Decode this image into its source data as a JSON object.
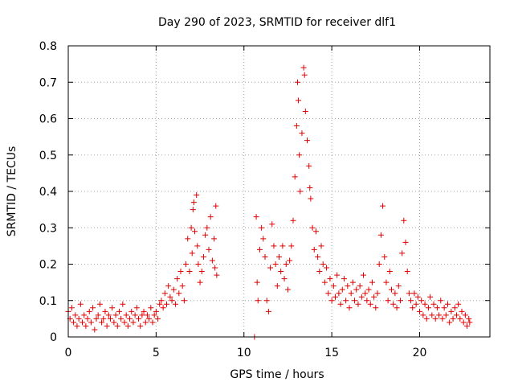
{
  "chart_data": {
    "type": "scatter",
    "title": "Day 290 of 2023, SRMTID for receiver dlf1",
    "xlabel": "GPS time / hours",
    "ylabel": "SRMTID / TECUs",
    "xlim": [
      0,
      24
    ],
    "ylim": [
      0,
      0.8
    ],
    "xticks": [
      0,
      5,
      10,
      15,
      20
    ],
    "yticks": [
      0,
      0.1,
      0.2,
      0.3,
      0.4,
      0.5,
      0.6,
      0.7,
      0.8
    ],
    "xtick_labels": [
      "0",
      "5",
      "10",
      "15",
      "20"
    ],
    "ytick_labels": [
      "0",
      "0.1",
      "0.2",
      "0.3",
      "0.4",
      "0.5",
      "0.6",
      "0.7",
      "0.8"
    ],
    "grid": true,
    "marker": "+",
    "color": "#e00000",
    "series": [
      {
        "name": "SRMTID",
        "points": [
          [
            0.0,
            0.07
          ],
          [
            0.1,
            0.05
          ],
          [
            0.2,
            0.08
          ],
          [
            0.3,
            0.04
          ],
          [
            0.4,
            0.06
          ],
          [
            0.5,
            0.03
          ],
          [
            0.6,
            0.05
          ],
          [
            0.7,
            0.09
          ],
          [
            0.8,
            0.04
          ],
          [
            0.9,
            0.06
          ],
          [
            1.0,
            0.03
          ],
          [
            1.1,
            0.05
          ],
          [
            1.2,
            0.07
          ],
          [
            1.3,
            0.04
          ],
          [
            1.4,
            0.08
          ],
          [
            1.5,
            0.02
          ],
          [
            1.6,
            0.05
          ],
          [
            1.7,
            0.06
          ],
          [
            1.8,
            0.09
          ],
          [
            1.9,
            0.04
          ],
          [
            2.0,
            0.05
          ],
          [
            2.1,
            0.07
          ],
          [
            2.2,
            0.03
          ],
          [
            2.3,
            0.06
          ],
          [
            2.4,
            0.05
          ],
          [
            2.5,
            0.08
          ],
          [
            2.6,
            0.04
          ],
          [
            2.7,
            0.06
          ],
          [
            2.8,
            0.03
          ],
          [
            2.9,
            0.07
          ],
          [
            3.0,
            0.05
          ],
          [
            3.1,
            0.09
          ],
          [
            3.2,
            0.04
          ],
          [
            3.3,
            0.06
          ],
          [
            3.4,
            0.03
          ],
          [
            3.5,
            0.05
          ],
          [
            3.6,
            0.07
          ],
          [
            3.7,
            0.04
          ],
          [
            3.8,
            0.06
          ],
          [
            3.9,
            0.08
          ],
          [
            4.0,
            0.05
          ],
          [
            4.1,
            0.03
          ],
          [
            4.2,
            0.06
          ],
          [
            4.3,
            0.07
          ],
          [
            4.4,
            0.04
          ],
          [
            4.5,
            0.06
          ],
          [
            4.6,
            0.05
          ],
          [
            4.7,
            0.08
          ],
          [
            4.8,
            0.04
          ],
          [
            4.9,
            0.06
          ],
          [
            5.0,
            0.07
          ],
          [
            5.1,
            0.05
          ],
          [
            5.2,
            0.09
          ],
          [
            5.3,
            0.1
          ],
          [
            5.4,
            0.08
          ],
          [
            5.5,
            0.12
          ],
          [
            5.6,
            0.09
          ],
          [
            5.7,
            0.14
          ],
          [
            5.8,
            0.11
          ],
          [
            5.9,
            0.1
          ],
          [
            6.0,
            0.13
          ],
          [
            6.1,
            0.09
          ],
          [
            6.2,
            0.16
          ],
          [
            6.3,
            0.12
          ],
          [
            6.4,
            0.18
          ],
          [
            6.5,
            0.14
          ],
          [
            6.6,
            0.1
          ],
          [
            6.7,
            0.2
          ],
          [
            6.8,
            0.27
          ],
          [
            6.9,
            0.18
          ],
          [
            7.0,
            0.3
          ],
          [
            7.05,
            0.23
          ],
          [
            7.1,
            0.35
          ],
          [
            7.15,
            0.37
          ],
          [
            7.2,
            0.29
          ],
          [
            7.3,
            0.39
          ],
          [
            7.35,
            0.25
          ],
          [
            7.4,
            0.2
          ],
          [
            7.5,
            0.15
          ],
          [
            7.6,
            0.18
          ],
          [
            7.7,
            0.22
          ],
          [
            7.8,
            0.28
          ],
          [
            7.9,
            0.3
          ],
          [
            8.0,
            0.24
          ],
          [
            8.1,
            0.33
          ],
          [
            8.2,
            0.21
          ],
          [
            8.3,
            0.27
          ],
          [
            8.35,
            0.19
          ],
          [
            8.4,
            0.36
          ],
          [
            8.45,
            0.17
          ],
          [
            10.6,
            0.0
          ],
          [
            10.7,
            0.33
          ],
          [
            10.75,
            0.15
          ],
          [
            10.8,
            0.1
          ],
          [
            10.9,
            0.24
          ],
          [
            11.0,
            0.3
          ],
          [
            11.1,
            0.27
          ],
          [
            11.2,
            0.22
          ],
          [
            11.3,
            0.1
          ],
          [
            11.4,
            0.07
          ],
          [
            11.5,
            0.19
          ],
          [
            11.6,
            0.31
          ],
          [
            11.7,
            0.25
          ],
          [
            11.8,
            0.2
          ],
          [
            11.9,
            0.14
          ],
          [
            12.0,
            0.22
          ],
          [
            12.1,
            0.18
          ],
          [
            12.2,
            0.25
          ],
          [
            12.3,
            0.16
          ],
          [
            12.4,
            0.2
          ],
          [
            12.5,
            0.13
          ],
          [
            12.6,
            0.21
          ],
          [
            12.7,
            0.25
          ],
          [
            12.8,
            0.32
          ],
          [
            12.9,
            0.44
          ],
          [
            13.0,
            0.58
          ],
          [
            13.05,
            0.7
          ],
          [
            13.1,
            0.65
          ],
          [
            13.15,
            0.5
          ],
          [
            13.2,
            0.4
          ],
          [
            13.3,
            0.56
          ],
          [
            13.4,
            0.74
          ],
          [
            13.45,
            0.72
          ],
          [
            13.5,
            0.62
          ],
          [
            13.6,
            0.54
          ],
          [
            13.7,
            0.47
          ],
          [
            13.75,
            0.41
          ],
          [
            13.8,
            0.38
          ],
          [
            13.9,
            0.3
          ],
          [
            14.0,
            0.24
          ],
          [
            14.1,
            0.29
          ],
          [
            14.2,
            0.22
          ],
          [
            14.3,
            0.18
          ],
          [
            14.4,
            0.25
          ],
          [
            14.5,
            0.2
          ],
          [
            14.6,
            0.15
          ],
          [
            14.7,
            0.19
          ],
          [
            14.8,
            0.12
          ],
          [
            14.9,
            0.16
          ],
          [
            15.0,
            0.1
          ],
          [
            15.1,
            0.14
          ],
          [
            15.2,
            0.11
          ],
          [
            15.3,
            0.17
          ],
          [
            15.4,
            0.12
          ],
          [
            15.5,
            0.09
          ],
          [
            15.6,
            0.13
          ],
          [
            15.7,
            0.16
          ],
          [
            15.8,
            0.1
          ],
          [
            15.9,
            0.14
          ],
          [
            16.0,
            0.08
          ],
          [
            16.1,
            0.12
          ],
          [
            16.2,
            0.15
          ],
          [
            16.3,
            0.1
          ],
          [
            16.4,
            0.13
          ],
          [
            16.5,
            0.09
          ],
          [
            16.6,
            0.14
          ],
          [
            16.7,
            0.11
          ],
          [
            16.8,
            0.17
          ],
          [
            16.9,
            0.12
          ],
          [
            17.0,
            0.1
          ],
          [
            17.1,
            0.13
          ],
          [
            17.2,
            0.09
          ],
          [
            17.3,
            0.15
          ],
          [
            17.4,
            0.11
          ],
          [
            17.5,
            0.08
          ],
          [
            17.6,
            0.12
          ],
          [
            17.7,
            0.2
          ],
          [
            17.8,
            0.28
          ],
          [
            17.9,
            0.36
          ],
          [
            18.0,
            0.22
          ],
          [
            18.1,
            0.15
          ],
          [
            18.2,
            0.1
          ],
          [
            18.3,
            0.18
          ],
          [
            18.4,
            0.13
          ],
          [
            18.5,
            0.09
          ],
          [
            18.6,
            0.12
          ],
          [
            18.7,
            0.08
          ],
          [
            18.8,
            0.14
          ],
          [
            18.9,
            0.1
          ],
          [
            19.0,
            0.23
          ],
          [
            19.1,
            0.32
          ],
          [
            19.2,
            0.26
          ],
          [
            19.3,
            0.18
          ],
          [
            19.4,
            0.12
          ],
          [
            19.5,
            0.1
          ],
          [
            19.6,
            0.08
          ],
          [
            19.7,
            0.12
          ],
          [
            19.8,
            0.09
          ],
          [
            19.9,
            0.11
          ],
          [
            20.0,
            0.07
          ],
          [
            20.1,
            0.1
          ],
          [
            20.2,
            0.06
          ],
          [
            20.3,
            0.09
          ],
          [
            20.4,
            0.05
          ],
          [
            20.5,
            0.08
          ],
          [
            20.6,
            0.11
          ],
          [
            20.7,
            0.06
          ],
          [
            20.8,
            0.09
          ],
          [
            20.9,
            0.05
          ],
          [
            21.0,
            0.08
          ],
          [
            21.1,
            0.06
          ],
          [
            21.2,
            0.1
          ],
          [
            21.3,
            0.05
          ],
          [
            21.4,
            0.08
          ],
          [
            21.5,
            0.06
          ],
          [
            21.6,
            0.09
          ],
          [
            21.7,
            0.04
          ],
          [
            21.8,
            0.07
          ],
          [
            21.9,
            0.05
          ],
          [
            22.0,
            0.08
          ],
          [
            22.1,
            0.06
          ],
          [
            22.2,
            0.09
          ],
          [
            22.3,
            0.05
          ],
          [
            22.4,
            0.07
          ],
          [
            22.5,
            0.04
          ],
          [
            22.6,
            0.06
          ],
          [
            22.7,
            0.03
          ],
          [
            22.8,
            0.05
          ],
          [
            22.85,
            0.04
          ]
        ]
      }
    ]
  }
}
